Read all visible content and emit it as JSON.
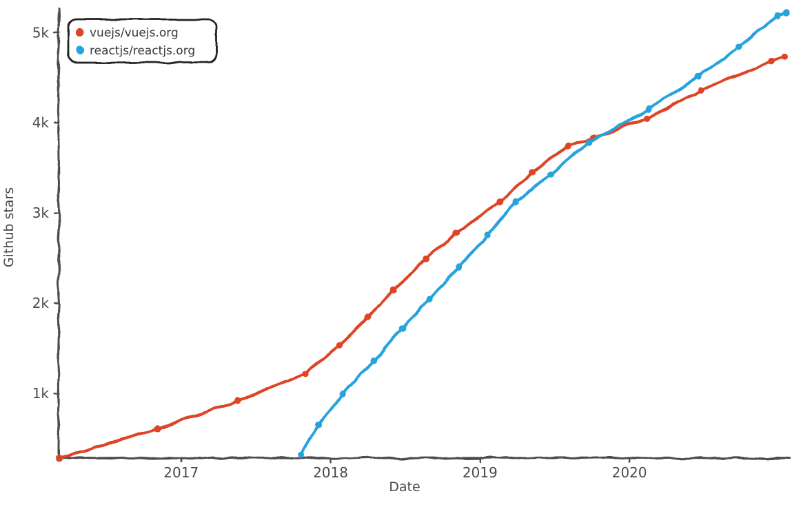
{
  "chart_data": {
    "type": "line",
    "title": "",
    "xlabel": "Date",
    "ylabel": "Github stars",
    "x_domain": [
      2016.18,
      2021.07
    ],
    "y_domain": [
      280,
      5270
    ],
    "grid": false,
    "legend_position": "upper-left",
    "x_ticks": [
      {
        "value": 2017,
        "label": "2017"
      },
      {
        "value": 2018,
        "label": "2018"
      },
      {
        "value": 2019,
        "label": "2019"
      },
      {
        "value": 2020,
        "label": "2020"
      }
    ],
    "y_ticks": [
      {
        "value": 1000,
        "label": "1k"
      },
      {
        "value": 2000,
        "label": "2k"
      },
      {
        "value": 3000,
        "label": "3k"
      },
      {
        "value": 4000,
        "label": "4k"
      },
      {
        "value": 5000,
        "label": "5k"
      }
    ],
    "series": [
      {
        "name": "vuejs/vuejs.org",
        "color": "#dd4528",
        "points": [
          [
            2016.18,
            280
          ],
          [
            2016.84,
            600
          ],
          [
            2017.38,
            920
          ],
          [
            2017.83,
            1210
          ],
          [
            2018.06,
            1530
          ],
          [
            2018.25,
            1850
          ],
          [
            2018.42,
            2140
          ],
          [
            2018.64,
            2490
          ],
          [
            2018.84,
            2780
          ],
          [
            2019.13,
            3120
          ],
          [
            2019.35,
            3450
          ],
          [
            2019.59,
            3740
          ],
          [
            2019.76,
            3830
          ],
          [
            2020.12,
            4050
          ],
          [
            2020.48,
            4360
          ],
          [
            2020.95,
            4680
          ],
          [
            2021.04,
            4730
          ]
        ]
      },
      {
        "name": "reactjs/reactjs.org",
        "color": "#28a3dd",
        "points": [
          [
            2017.8,
            320
          ],
          [
            2017.92,
            650
          ],
          [
            2018.08,
            990
          ],
          [
            2018.29,
            1360
          ],
          [
            2018.48,
            1720
          ],
          [
            2018.66,
            2040
          ],
          [
            2018.86,
            2400
          ],
          [
            2019.05,
            2760
          ],
          [
            2019.24,
            3120
          ],
          [
            2019.47,
            3430
          ],
          [
            2019.73,
            3780
          ],
          [
            2020.13,
            4150
          ],
          [
            2020.46,
            4510
          ],
          [
            2020.73,
            4840
          ],
          [
            2020.99,
            5190
          ],
          [
            2021.05,
            5220
          ]
        ]
      }
    ]
  },
  "style": {
    "background": "#ffffff",
    "axis_color": "#4e4e4e",
    "text_color": "#4a4a4a",
    "legend_border_color": "#222222",
    "legend_background": "#ffffff"
  }
}
